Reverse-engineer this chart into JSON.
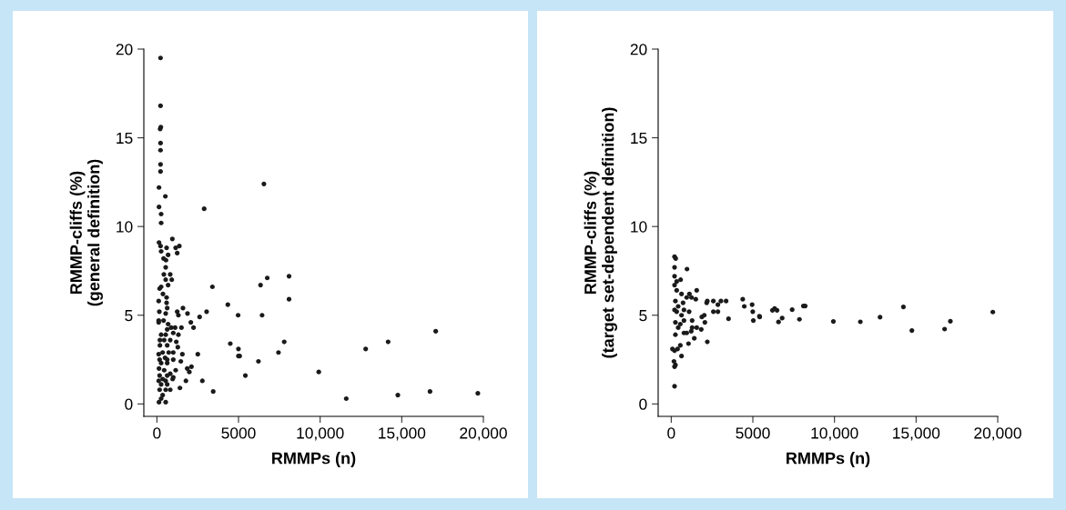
{
  "chart_data": [
    {
      "type": "scatter",
      "xlabel": "RMMPs (n)",
      "ylabel": "RMMP-cliffs (%)\n(general definition)",
      "marker": "circle",
      "xlim": [
        -800,
        20000
      ],
      "ylim": [
        -0.7,
        20
      ],
      "xticks": [
        0,
        5000,
        {
          "value": 10000,
          "label": "10,000"
        },
        {
          "value": 15000,
          "label": "15,000"
        },
        {
          "value": 20000,
          "label": "20,000"
        }
      ],
      "yticks": [
        0,
        5,
        10,
        15,
        20
      ],
      "series": [
        {
          "color": "#1a1a1a",
          "x": [
            223,
            223,
            240,
            200,
            223,
            223,
            223,
            223,
            130,
            518,
            130,
            260,
            260,
            2896,
            3400,
            4345,
            4975,
            3045,
            2618,
            2080,
            2245,
            4495,
            2506,
            3450,
            6556,
            6760,
            8095,
            6350,
            8095,
            6444,
            4995,
            4995,
            5070,
            7800,
            7447,
            6220,
            5420,
            9915,
            11600,
            14760,
            16730,
            19660,
            12790,
            14165,
            17080,
            130,
            223,
            947,
            594,
            1374,
            1151,
            1244,
            260,
            409,
            687,
            557,
            539,
            427,
            817,
            539,
            910,
            687,
            260,
            167,
            371,
            111,
            594,
            594,
            631,
            149,
            539,
            1244,
            1597,
            1875,
            1318,
            111,
            409,
            111,
            687,
            873,
            1114,
            1504,
            631,
            260,
            539,
            1003,
            1318,
            186,
            446,
            817,
            1188,
            186,
            631,
            1281,
            353,
            724,
            1003,
            1560,
            111,
            501,
            167,
            631,
            1003,
            1467,
            260,
            631,
            1151,
            1857,
            2117,
            130,
            446,
            817,
            167,
            631,
            1003,
            353,
            111,
            539,
            966,
            1987,
            2785,
            260,
            631,
            1777,
            167,
            539,
            817,
            1411,
            353,
            260,
            130,
            539
          ],
          "values": [
            19.5,
            16.8,
            15.6,
            15.5,
            14.7,
            14.3,
            13.5,
            13.1,
            12.2,
            11.7,
            11.1,
            10.7,
            10.2,
            11.0,
            6.6,
            5.6,
            5.0,
            5.2,
            4.9,
            4.6,
            4.3,
            3.4,
            2.8,
            0.7,
            12.4,
            7.1,
            7.2,
            6.7,
            5.9,
            5.0,
            3.1,
            2.7,
            2.7,
            3.5,
            2.9,
            2.4,
            1.6,
            1.8,
            0.3,
            0.5,
            0.7,
            0.6,
            3.1,
            3.5,
            4.1,
            9.1,
            8.9,
            9.3,
            8.8,
            8.9,
            8.8,
            8.5,
            8.6,
            8.2,
            8.4,
            8.1,
            7.7,
            7.3,
            7.3,
            7.0,
            7.0,
            6.7,
            6.6,
            6.5,
            6.2,
            5.8,
            6.0,
            5.7,
            5.4,
            5.2,
            5.1,
            5.2,
            5.4,
            5.1,
            5.0,
            4.7,
            4.7,
            4.6,
            4.5,
            4.3,
            4.3,
            4.3,
            4.2,
            3.9,
            3.9,
            4.0,
            3.9,
            3.6,
            3.6,
            3.6,
            3.5,
            3.3,
            3.3,
            3.2,
            2.9,
            2.9,
            2.9,
            2.8,
            2.8,
            2.6,
            2.5,
            2.5,
            2.5,
            2.4,
            2.3,
            2.3,
            1.9,
            2.0,
            2.1,
            2.0,
            1.9,
            1.7,
            1.6,
            1.6,
            1.5,
            1.4,
            1.3,
            1.3,
            1.4,
            1.8,
            1.3,
            1.1,
            1.1,
            1.3,
            0.8,
            0.8,
            0.8,
            0.9,
            0.5,
            0.3,
            0.1,
            0.1
          ]
        }
      ]
    },
    {
      "type": "scatter",
      "xlabel": "RMMPs (n)",
      "ylabel": "RMMP-cliffs (%)\n(target set-dependent definition)",
      "marker": "circle",
      "xlim": [
        -800,
        20000
      ],
      "ylim": [
        -0.7,
        20
      ],
      "xticks": [
        0,
        5000,
        {
          "value": 10000,
          "label": "10,000"
        },
        {
          "value": 15000,
          "label": "15,000"
        },
        {
          "value": 20000,
          "label": "20,000"
        }
      ],
      "yticks": [
        0,
        5,
        10,
        15,
        20
      ],
      "series": [
        {
          "color": "#1a1a1a",
          "x": [
            204,
            273,
            204,
            966,
            204,
            576,
            204,
            334,
            1560,
            631,
            1114,
            1244,
            1504,
            2210,
            2581,
            2172,
            3045,
            3361,
            4380,
            4956,
            4475,
            2859,
            2581,
            2859,
            4994,
            5420,
            5030,
            3510,
            2024,
            1875,
            2061,
            334,
            780,
            1095,
            1281,
            1560,
            1281,
            1838,
            947,
            1225,
            780,
            1411,
            1058,
            2210,
            557,
            390,
            204,
            74,
            631,
            167,
            256,
            204,
            204,
            256,
            427,
            631,
            256,
            557,
            256,
            427,
            780,
            204,
            334,
            724,
            947,
            5403,
            6200,
            6332,
            6480,
            6573,
            6795,
            7408,
            7854,
            8095,
            8206,
            9933,
            11586,
            12792,
            14222,
            14742,
            16747,
            17100,
            19700
          ],
          "values": [
            8.3,
            8.2,
            7.7,
            7.6,
            7.2,
            7.0,
            6.7,
            6.9,
            6.4,
            6.2,
            6.2,
            6.0,
            5.9,
            5.8,
            5.8,
            5.7,
            5.8,
            5.8,
            5.9,
            5.6,
            5.5,
            5.6,
            5.2,
            5.2,
            5.2,
            4.9,
            4.7,
            4.8,
            5.0,
            4.9,
            4.6,
            5.2,
            5.3,
            5.2,
            4.7,
            4.3,
            4.3,
            4.2,
            4.0,
            4.1,
            4.0,
            3.7,
            3.4,
            3.5,
            3.3,
            3.1,
            3.0,
            3.1,
            2.7,
            2.4,
            2.2,
            2.1,
            1.0,
            5.8,
            5.5,
            5.0,
            4.6,
            4.5,
            3.9,
            4.3,
            4.7,
            5.3,
            6.4,
            5.7,
            6.0,
            4.94,
            5.28,
            5.38,
            5.28,
            4.62,
            4.84,
            5.31,
            4.77,
            5.52,
            5.52,
            4.65,
            4.63,
            4.89,
            5.47,
            4.14,
            4.22,
            4.66,
            5.18
          ]
        }
      ]
    }
  ]
}
